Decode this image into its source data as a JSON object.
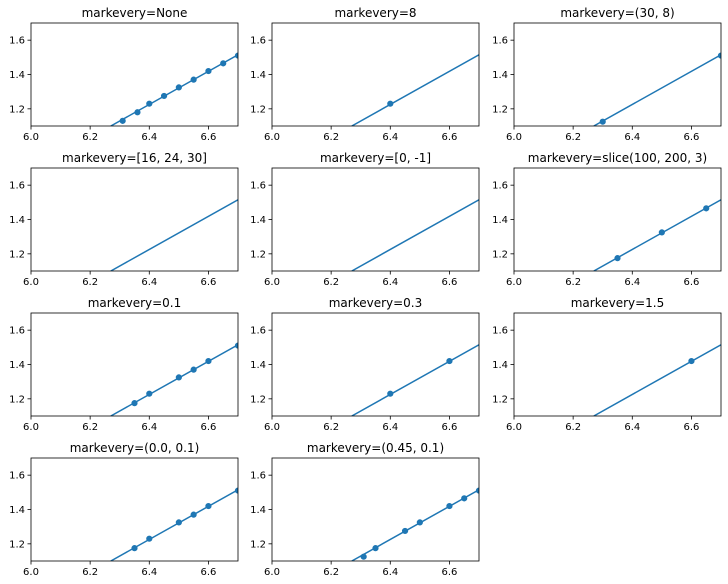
{
  "figure": {
    "background": "#ffffff",
    "line_color": "#1f77b4"
  },
  "chart_data": [
    {
      "type": "line",
      "title": "markevery=None",
      "xlim": [
        6.0,
        6.7
      ],
      "ylim": [
        1.1,
        1.7
      ],
      "xticks": [
        "6.0",
        "6.2",
        "6.4",
        "6.6"
      ],
      "yticks": [
        "1.2",
        "1.4",
        "1.6"
      ],
      "line": {
        "x": [
          6.27,
          6.7
        ],
        "y": [
          1.1,
          1.515
        ]
      },
      "markers": {
        "x": [
          6.31,
          6.36,
          6.4,
          6.45,
          6.5,
          6.55,
          6.6,
          6.65,
          6.7
        ],
        "y": [
          1.13,
          1.18,
          1.23,
          1.275,
          1.325,
          1.37,
          1.42,
          1.465,
          1.51
        ]
      }
    },
    {
      "type": "line",
      "title": "markevery=8",
      "xlim": [
        6.0,
        6.7
      ],
      "ylim": [
        1.1,
        1.7
      ],
      "xticks": [
        "6.0",
        "6.2",
        "6.4",
        "6.6"
      ],
      "yticks": [
        "1.2",
        "1.4",
        "1.6"
      ],
      "line": {
        "x": [
          6.27,
          6.7
        ],
        "y": [
          1.1,
          1.515
        ]
      },
      "markers": {
        "x": [
          6.4
        ],
        "y": [
          1.23
        ]
      }
    },
    {
      "type": "line",
      "title": "markevery=(30, 8)",
      "xlim": [
        6.0,
        6.7
      ],
      "ylim": [
        1.1,
        1.7
      ],
      "xticks": [
        "6.0",
        "6.2",
        "6.4",
        "6.6"
      ],
      "yticks": [
        "1.2",
        "1.4",
        "1.6"
      ],
      "line": {
        "x": [
          6.27,
          6.7
        ],
        "y": [
          1.1,
          1.515
        ]
      },
      "markers": {
        "x": [
          6.3,
          6.7
        ],
        "y": [
          1.125,
          1.51
        ]
      }
    },
    {
      "type": "line",
      "title": "markevery=[16, 24, 30]",
      "xlim": [
        6.0,
        6.7
      ],
      "ylim": [
        1.1,
        1.7
      ],
      "xticks": [
        "6.0",
        "6.2",
        "6.4",
        "6.6"
      ],
      "yticks": [
        "1.2",
        "1.4",
        "1.6"
      ],
      "line": {
        "x": [
          6.27,
          6.7
        ],
        "y": [
          1.1,
          1.515
        ]
      },
      "markers": {
        "x": [],
        "y": []
      }
    },
    {
      "type": "line",
      "title": "markevery=[0, -1]",
      "xlim": [
        6.0,
        6.7
      ],
      "ylim": [
        1.1,
        1.7
      ],
      "xticks": [
        "6.0",
        "6.2",
        "6.4",
        "6.6"
      ],
      "yticks": [
        "1.2",
        "1.4",
        "1.6"
      ],
      "line": {
        "x": [
          6.27,
          6.7
        ],
        "y": [
          1.1,
          1.515
        ]
      },
      "markers": {
        "x": [],
        "y": []
      }
    },
    {
      "type": "line",
      "title": "markevery=slice(100, 200, 3)",
      "xlim": [
        6.0,
        6.7
      ],
      "ylim": [
        1.1,
        1.7
      ],
      "xticks": [
        "6.0",
        "6.2",
        "6.4",
        "6.6"
      ],
      "yticks": [
        "1.2",
        "1.4",
        "1.6"
      ],
      "line": {
        "x": [
          6.27,
          6.7
        ],
        "y": [
          1.1,
          1.515
        ]
      },
      "markers": {
        "x": [
          6.35,
          6.5,
          6.65
        ],
        "y": [
          1.175,
          1.325,
          1.465
        ]
      }
    },
    {
      "type": "line",
      "title": "markevery=0.1",
      "xlim": [
        6.0,
        6.7
      ],
      "ylim": [
        1.1,
        1.7
      ],
      "xticks": [
        "6.0",
        "6.2",
        "6.4",
        "6.6"
      ],
      "yticks": [
        "1.2",
        "1.4",
        "1.6"
      ],
      "line": {
        "x": [
          6.27,
          6.7
        ],
        "y": [
          1.1,
          1.515
        ]
      },
      "markers": {
        "x": [
          6.35,
          6.4,
          6.5,
          6.55,
          6.6,
          6.7
        ],
        "y": [
          1.175,
          1.23,
          1.325,
          1.37,
          1.42,
          1.51
        ]
      }
    },
    {
      "type": "line",
      "title": "markevery=0.3",
      "xlim": [
        6.0,
        6.7
      ],
      "ylim": [
        1.1,
        1.7
      ],
      "xticks": [
        "6.0",
        "6.2",
        "6.4",
        "6.6"
      ],
      "yticks": [
        "1.2",
        "1.4",
        "1.6"
      ],
      "line": {
        "x": [
          6.27,
          6.7
        ],
        "y": [
          1.1,
          1.515
        ]
      },
      "markers": {
        "x": [
          6.4,
          6.6
        ],
        "y": [
          1.23,
          1.42
        ]
      }
    },
    {
      "type": "line",
      "title": "markevery=1.5",
      "xlim": [
        6.0,
        6.7
      ],
      "ylim": [
        1.1,
        1.7
      ],
      "xticks": [
        "6.0",
        "6.2",
        "6.4",
        "6.6"
      ],
      "yticks": [
        "1.2",
        "1.4",
        "1.6"
      ],
      "line": {
        "x": [
          6.27,
          6.7
        ],
        "y": [
          1.1,
          1.515
        ]
      },
      "markers": {
        "x": [
          6.6
        ],
        "y": [
          1.42
        ]
      }
    },
    {
      "type": "line",
      "title": "markevery=(0.0, 0.1)",
      "xlim": [
        6.0,
        6.7
      ],
      "ylim": [
        1.1,
        1.7
      ],
      "xticks": [
        "6.0",
        "6.2",
        "6.4",
        "6.6"
      ],
      "yticks": [
        "1.2",
        "1.4",
        "1.6"
      ],
      "line": {
        "x": [
          6.27,
          6.7
        ],
        "y": [
          1.1,
          1.515
        ]
      },
      "markers": {
        "x": [
          6.35,
          6.4,
          6.5,
          6.55,
          6.6,
          6.7
        ],
        "y": [
          1.175,
          1.23,
          1.325,
          1.37,
          1.42,
          1.51
        ]
      }
    },
    {
      "type": "line",
      "title": "markevery=(0.45, 0.1)",
      "xlim": [
        6.0,
        6.7
      ],
      "ylim": [
        1.1,
        1.7
      ],
      "xticks": [
        "6.0",
        "6.2",
        "6.4",
        "6.6"
      ],
      "yticks": [
        "1.2",
        "1.4",
        "1.6"
      ],
      "line": {
        "x": [
          6.27,
          6.7
        ],
        "y": [
          1.1,
          1.515
        ]
      },
      "markers": {
        "x": [
          6.31,
          6.35,
          6.45,
          6.5,
          6.6,
          6.65,
          6.7
        ],
        "y": [
          1.125,
          1.175,
          1.275,
          1.325,
          1.42,
          1.465,
          1.51
        ]
      }
    }
  ]
}
